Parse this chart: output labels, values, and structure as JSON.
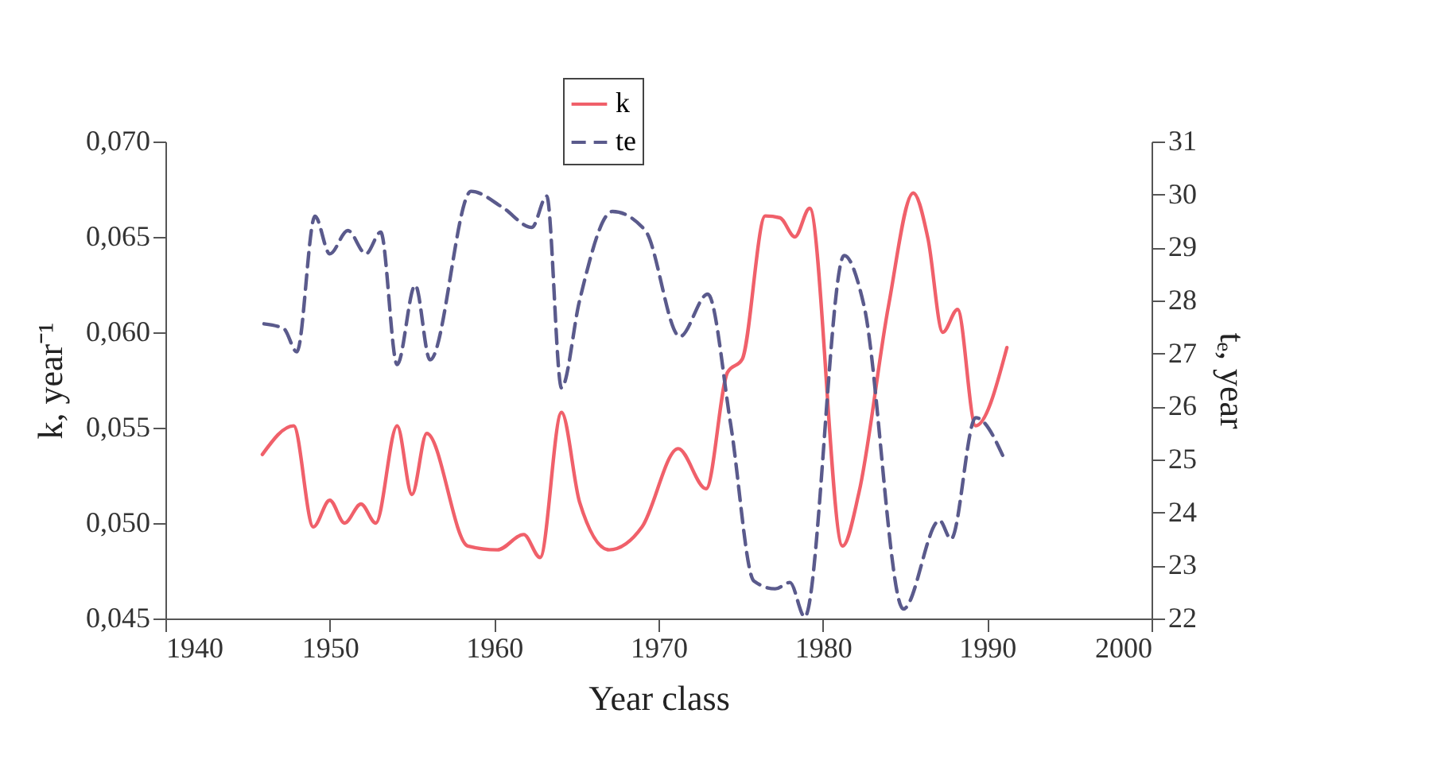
{
  "chart_data": {
    "type": "line",
    "xlabel": "Year class",
    "ylabel": "k, year⁻¹",
    "y2label": "tₑ, year",
    "legend": "top",
    "xlim": [
      1940,
      2000
    ],
    "xticks": [
      1940,
      1950,
      1960,
      1970,
      1980,
      1990,
      2000
    ],
    "ylim": [
      0.045,
      0.07
    ],
    "yticks": [
      {
        "value": 0.045,
        "label": "0,045"
      },
      {
        "value": 0.05,
        "label": "0,050"
      },
      {
        "value": 0.055,
        "label": "0,055"
      },
      {
        "value": 0.06,
        "label": "0,060"
      },
      {
        "value": 0.065,
        "label": "0,065"
      },
      {
        "value": 0.07,
        "label": "0,070"
      }
    ],
    "y2lim": [
      22,
      31
    ],
    "y2ticks": [
      22,
      23,
      24,
      25,
      26,
      27,
      28,
      29,
      30,
      31
    ],
    "series": [
      {
        "name": "k",
        "color": "#f0606a",
        "line_style": "solid",
        "x": [
          1945.9,
          1947.8,
          1949.0,
          1950.0,
          1950.9,
          1951.9,
          1952.8,
          1954.1,
          1955.0,
          1955.9,
          1958.4,
          1960.2,
          1961.8,
          1962.8,
          1964.1,
          1965.2,
          1967.0,
          1969.0,
          1971.2,
          1972.9,
          1974.2,
          1975.1,
          1976.5,
          1977.4,
          1978.3,
          1979.2,
          1981.2,
          1982.2,
          1984.0,
          1985.5,
          1986.4,
          1987.3,
          1988.2,
          1989.3,
          1991.2
        ],
        "values": [
          0.0536,
          0.0551,
          0.0498,
          0.0512,
          0.05,
          0.051,
          0.05,
          0.0551,
          0.0515,
          0.0547,
          0.0488,
          0.0486,
          0.0494,
          0.0482,
          0.0558,
          0.0511,
          0.0486,
          0.0498,
          0.0539,
          0.0518,
          0.0579,
          0.0586,
          0.0661,
          0.066,
          0.065,
          0.0665,
          0.0488,
          0.0516,
          0.0614,
          0.0673,
          0.0649,
          0.06,
          0.0612,
          0.0551,
          0.0592
        ]
      },
      {
        "name": "te",
        "color": "#5a5a8c",
        "line_style": "dashed",
        "axis": "y2",
        "x": [
          1946.0,
          1947.2,
          1948.0,
          1949.1,
          1950.0,
          1951.1,
          1952.2,
          1953.1,
          1954.1,
          1955.2,
          1956.1,
          1958.6,
          1960.5,
          1962.3,
          1963.2,
          1964.1,
          1965.2,
          1967.2,
          1969.2,
          1971.3,
          1973.0,
          1974.4,
          1975.8,
          1977.1,
          1978.0,
          1978.9,
          1981.3,
          1982.5,
          1984.9,
          1987.1,
          1987.8,
          1989.3,
          1991.1
        ],
        "values": [
          27.56,
          27.47,
          27.03,
          29.59,
          28.88,
          29.32,
          28.88,
          29.29,
          26.79,
          28.29,
          26.88,
          30.06,
          29.76,
          29.38,
          29.97,
          26.35,
          28.0,
          29.68,
          29.32,
          27.32,
          28.12,
          25.65,
          22.71,
          22.56,
          22.68,
          22.03,
          28.85,
          27.91,
          22.18,
          23.85,
          23.5,
          25.79,
          24.97
        ]
      }
    ]
  }
}
